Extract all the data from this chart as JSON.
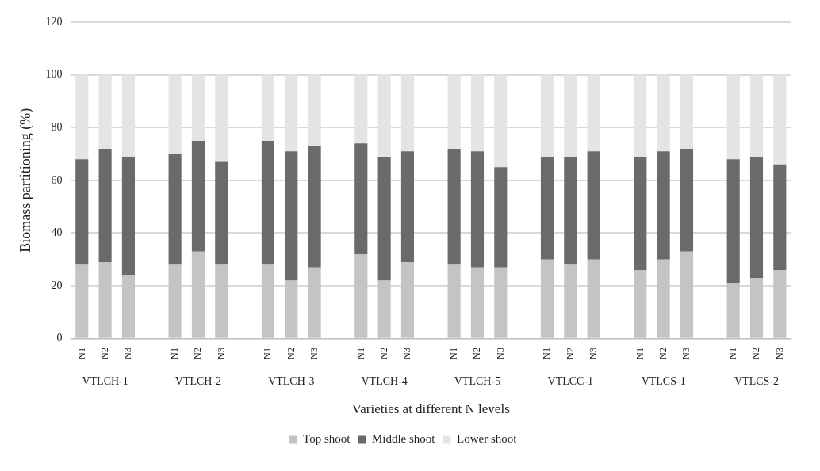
{
  "chart_data": {
    "type": "bar",
    "stacked": true,
    "xlabel": "Varieties at different N levels",
    "ylabel": "Biomass partitioning (%)",
    "categories": [
      "N1",
      "N2",
      "N3",
      null,
      "N1",
      "N2",
      "N3",
      null,
      "N1",
      "N2",
      "N3",
      null,
      "N1",
      "N2",
      "N3",
      null,
      "N1",
      "N2",
      "N3",
      null,
      "N1",
      "N2",
      "N3",
      null,
      "N1",
      "N2",
      "N3",
      null,
      "N1",
      "N2",
      "N3"
    ],
    "series": [
      {
        "name": "Top shoot",
        "color": "#c4c4c4",
        "values": [
          28,
          29,
          24,
          null,
          28,
          33,
          28,
          null,
          28,
          22,
          27,
          null,
          32,
          22,
          29,
          null,
          28,
          27,
          27,
          null,
          30,
          28,
          30,
          null,
          26,
          30,
          33,
          null,
          21,
          23,
          26
        ]
      },
      {
        "name": "Middle shoot",
        "color": "#6a6a6a",
        "values": [
          40,
          43,
          45,
          null,
          42,
          42,
          39,
          null,
          47,
          49,
          46,
          null,
          42,
          47,
          42,
          null,
          44,
          44,
          38,
          null,
          39,
          41,
          41,
          null,
          43,
          41,
          39,
          null,
          47,
          46,
          40
        ]
      },
      {
        "name": "Lower shoot",
        "color": "#e4e4e4",
        "values": [
          32,
          28,
          31,
          null,
          30,
          25,
          33,
          null,
          25,
          29,
          27,
          null,
          26,
          31,
          29,
          null,
          28,
          29,
          35,
          null,
          31,
          31,
          29,
          null,
          31,
          29,
          28,
          null,
          32,
          31,
          34
        ]
      }
    ],
    "annotations": [
      "VTLCH-1",
      "VTLCH-2",
      "VTLCH-3",
      "VTLCH-4",
      "VTLCH-5",
      "VTLCC-1",
      "VTLCS-1",
      "VTLCS-2"
    ],
    "ylim": [
      0,
      120
    ],
    "yticks": [
      0,
      20,
      40,
      60,
      80,
      100,
      120
    ],
    "grid": "y",
    "legend": "bottom"
  }
}
